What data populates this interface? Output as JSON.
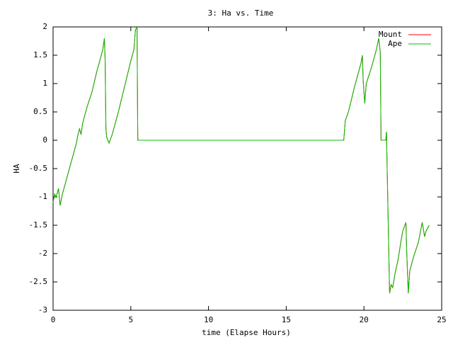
{
  "chart_data": {
    "type": "line",
    "title": "3: Ha vs. Time",
    "x_label": "time (Elapse Hours)",
    "y_label": "HA",
    "x": [
      0,
      0.1,
      0.2,
      0.35,
      0.45,
      0.6,
      1.0,
      1.5,
      1.6,
      1.7,
      1.8,
      1.9,
      2.2,
      2.5,
      2.8,
      3.1,
      3.2,
      3.3,
      3.35,
      3.4,
      3.45,
      3.6,
      3.8,
      4.2,
      4.6,
      5.0,
      5.2,
      5.3,
      5.4,
      5.45,
      18.7,
      18.8,
      19.0,
      19.4,
      19.8,
      19.9,
      19.95,
      20.05,
      20.15,
      20.5,
      20.8,
      20.95,
      21.05,
      21.1,
      21.4,
      21.45,
      21.5,
      21.65,
      21.75,
      21.85,
      22.0,
      22.2,
      22.4,
      22.5,
      22.7,
      22.75,
      22.85,
      22.95,
      23.2,
      23.5,
      23.75,
      23.9,
      24.0,
      24.2
    ],
    "series": [
      {
        "name": "Mount",
        "color": "#ff0000",
        "values": [
          -1.1,
          -0.95,
          -1.0,
          -0.85,
          -1.15,
          -0.95,
          -0.55,
          -0.05,
          0.1,
          0.2,
          0.1,
          0.3,
          0.6,
          0.85,
          1.2,
          1.5,
          1.6,
          1.8,
          1.4,
          0.2,
          0.05,
          -0.05,
          0.1,
          0.5,
          0.95,
          1.4,
          1.6,
          1.95,
          2.0,
          0,
          0,
          0.35,
          0.5,
          0.95,
          1.35,
          1.5,
          1.05,
          0.65,
          1.0,
          1.3,
          1.6,
          1.8,
          1.55,
          0,
          0,
          0.15,
          -0.6,
          -2.7,
          -2.55,
          -2.6,
          -2.35,
          -2.1,
          -1.75,
          -1.6,
          -1.45,
          -1.95,
          -2.7,
          -2.3,
          -2.05,
          -1.8,
          -1.45,
          -1.7,
          -1.6,
          -1.5
        ]
      },
      {
        "name": "Ape",
        "color": "#00c000",
        "values": [
          -1.1,
          -0.95,
          -1.0,
          -0.85,
          -1.15,
          -0.95,
          -0.55,
          -0.05,
          0.1,
          0.2,
          0.1,
          0.3,
          0.6,
          0.85,
          1.2,
          1.5,
          1.6,
          1.8,
          1.4,
          0.2,
          0.05,
          -0.05,
          0.1,
          0.5,
          0.95,
          1.4,
          1.6,
          1.95,
          2.0,
          0,
          0,
          0.35,
          0.5,
          0.95,
          1.35,
          1.5,
          1.05,
          0.65,
          1.0,
          1.3,
          1.6,
          1.8,
          1.55,
          0,
          0,
          0.15,
          -0.6,
          -2.7,
          -2.55,
          -2.6,
          -2.35,
          -2.1,
          -1.75,
          -1.6,
          -1.45,
          -1.95,
          -2.7,
          -2.3,
          -2.05,
          -1.8,
          -1.45,
          -1.7,
          -1.6,
          -1.5
        ]
      }
    ],
    "xlim": [
      0,
      25
    ],
    "xticks": [
      0,
      5,
      10,
      15,
      20,
      25
    ],
    "ylim": [
      -3,
      2
    ],
    "yticks": [
      -3,
      -2.5,
      -2,
      -1.5,
      -1,
      -0.5,
      0,
      0.5,
      1,
      1.5,
      2
    ],
    "legend": "top-right"
  }
}
